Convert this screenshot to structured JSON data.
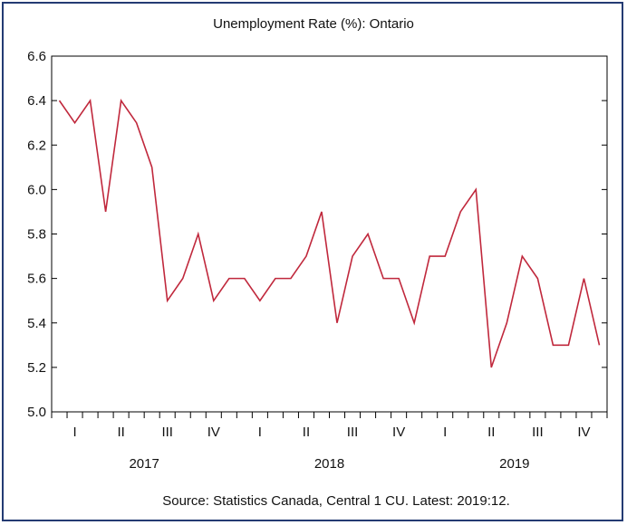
{
  "chart_data": {
    "type": "line",
    "title": "Unemployment Rate (%): Ontario",
    "source": "Source: Statistics Canada, Central 1 CU. Latest: 2019:12.",
    "xlabel": "",
    "ylabel": "",
    "ylim": [
      5.0,
      6.6
    ],
    "yticks": [
      "5.0",
      "5.2",
      "5.4",
      "5.6",
      "5.8",
      "6.0",
      "6.2",
      "6.4",
      "6.6"
    ],
    "quarter_labels": [
      "I",
      "II",
      "III",
      "IV",
      "I",
      "II",
      "III",
      "IV",
      "I",
      "II",
      "III",
      "IV"
    ],
    "year_labels": [
      "2017",
      "2018",
      "2019"
    ],
    "x": [
      "2017:01",
      "2017:02",
      "2017:03",
      "2017:04",
      "2017:05",
      "2017:06",
      "2017:07",
      "2017:08",
      "2017:09",
      "2017:10",
      "2017:11",
      "2017:12",
      "2018:01",
      "2018:02",
      "2018:03",
      "2018:04",
      "2018:05",
      "2018:06",
      "2018:07",
      "2018:08",
      "2018:09",
      "2018:10",
      "2018:11",
      "2018:12",
      "2019:01",
      "2019:02",
      "2019:03",
      "2019:04",
      "2019:05",
      "2019:06",
      "2019:07",
      "2019:08",
      "2019:09",
      "2019:10",
      "2019:11",
      "2019:12"
    ],
    "series": [
      {
        "name": "",
        "color": "#c0283c",
        "values": [
          6.4,
          6.3,
          6.4,
          5.9,
          6.4,
          6.3,
          6.1,
          5.5,
          5.6,
          5.8,
          5.5,
          5.6,
          5.6,
          5.5,
          5.6,
          5.6,
          5.7,
          5.9,
          5.4,
          5.7,
          5.8,
          5.6,
          5.6,
          5.4,
          5.7,
          5.7,
          5.9,
          6.0,
          5.2,
          5.4,
          5.7,
          5.6,
          5.3,
          5.3,
          5.6,
          5.3
        ]
      }
    ],
    "grid": false,
    "legend": "none"
  }
}
